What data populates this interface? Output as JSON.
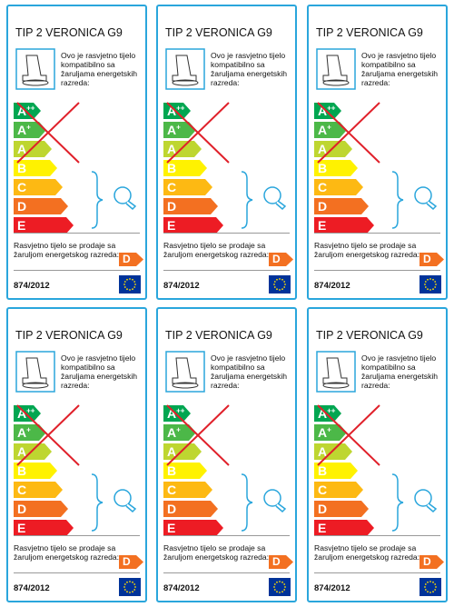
{
  "labels": [
    {
      "title": "TIP 2 VERONICA G9",
      "compatible_lines": [
        "Ovo je rasvjetno tijelo",
        "kompatibilno sa",
        "žaruljama energetskih",
        "razreda:"
      ],
      "classes": [
        {
          "letter": "A",
          "sup": "++"
        },
        {
          "letter": "A",
          "sup": "+"
        },
        {
          "letter": "A"
        },
        {
          "letter": "B"
        },
        {
          "letter": "C"
        },
        {
          "letter": "D"
        },
        {
          "letter": "E"
        }
      ],
      "sold_lines": [
        "Rasvjetno tijelo se prodaje sa",
        "žaruljom energetskog razreda:"
      ],
      "sold_class": "D",
      "regulation": "874/2012"
    },
    {
      "title": "TIP 2 VERONICA G9",
      "compatible_lines": [
        "Ovo je rasvjetno tijelo",
        "kompatibilno sa",
        "žaruljama energetskih",
        "razreda:"
      ],
      "classes": [
        {
          "letter": "A",
          "sup": "++"
        },
        {
          "letter": "A",
          "sup": "+"
        },
        {
          "letter": "A"
        },
        {
          "letter": "B"
        },
        {
          "letter": "C"
        },
        {
          "letter": "D"
        },
        {
          "letter": "E"
        }
      ],
      "sold_lines": [
        "Rasvjetno tijelo se prodaje sa",
        "žaruljom energetskog razreda:"
      ],
      "sold_class": "D",
      "regulation": "874/2012"
    },
    {
      "title": "TIP 2 VERONICA G9",
      "compatible_lines": [
        "Ovo je rasvjetno tijelo",
        "kompatibilno sa",
        "žaruljama energetskih",
        "razreda:"
      ],
      "classes": [
        {
          "letter": "A",
          "sup": "++"
        },
        {
          "letter": "A",
          "sup": "+"
        },
        {
          "letter": "A"
        },
        {
          "letter": "B"
        },
        {
          "letter": "C"
        },
        {
          "letter": "D"
        },
        {
          "letter": "E"
        }
      ],
      "sold_lines": [
        "Rasvjetno tijelo se prodaje sa",
        "žaruljom energetskog razreda:"
      ],
      "sold_class": "D",
      "regulation": "874/2012"
    },
    {
      "title": "TIP 2 VERONICA G9",
      "compatible_lines": [
        "Ovo je rasvjetno tijelo",
        "kompatibilno sa",
        "žaruljama energetskih",
        "razreda:"
      ],
      "classes": [
        {
          "letter": "A",
          "sup": "++"
        },
        {
          "letter": "A",
          "sup": "+"
        },
        {
          "letter": "A"
        },
        {
          "letter": "B"
        },
        {
          "letter": "C"
        },
        {
          "letter": "D"
        },
        {
          "letter": "E"
        }
      ],
      "sold_lines": [
        "Rasvjetno tijelo se prodaje sa",
        "žaruljom energetskog razreda:"
      ],
      "sold_class": "D",
      "regulation": "874/2012"
    },
    {
      "title": "TIP 2 VERONICA G9",
      "compatible_lines": [
        "Ovo je rasvjetno tijelo",
        "kompatibilno sa",
        "žaruljama energetskih",
        "razreda:"
      ],
      "classes": [
        {
          "letter": "A",
          "sup": "++"
        },
        {
          "letter": "A",
          "sup": "+"
        },
        {
          "letter": "A"
        },
        {
          "letter": "B"
        },
        {
          "letter": "C"
        },
        {
          "letter": "D"
        },
        {
          "letter": "E"
        }
      ],
      "sold_lines": [
        "Rasvjetno tijelo se prodaje sa",
        "žaruljom energetskog razreda:"
      ],
      "sold_class": "D",
      "regulation": "874/2012"
    },
    {
      "title": "TIP 2 VERONICA G9",
      "compatible_lines": [
        "Ovo je rasvjetno tijelo",
        "kompatibilno sa",
        "žaruljama energetskih",
        "razreda:"
      ],
      "classes": [
        {
          "letter": "A",
          "sup": "++"
        },
        {
          "letter": "A",
          "sup": "+"
        },
        {
          "letter": "A"
        },
        {
          "letter": "B"
        },
        {
          "letter": "C"
        },
        {
          "letter": "D"
        },
        {
          "letter": "E"
        }
      ],
      "sold_lines": [
        "Rasvjetno tijelo se prodaje sa",
        "žaruljom energetskog razreda:"
      ],
      "sold_class": "D",
      "regulation": "874/2012"
    }
  ]
}
